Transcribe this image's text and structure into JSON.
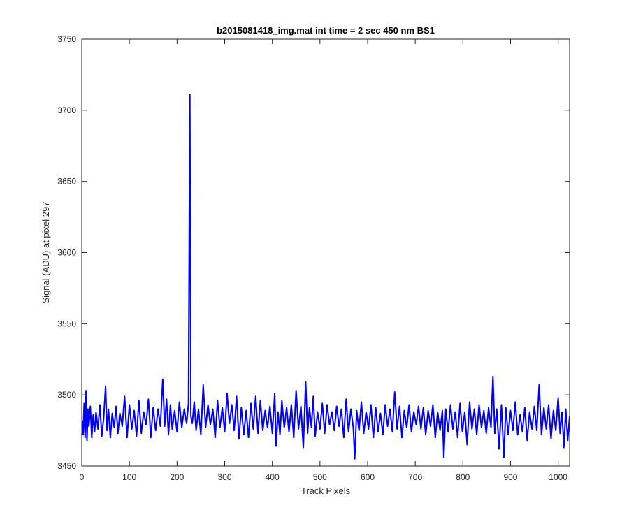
{
  "chart_data": {
    "type": "line",
    "title": "b2015081418_img.mat int time = 2 sec  450 nm BS1",
    "xlabel": "Track Pixels",
    "ylabel": "Signal (ADU) at pixel 297",
    "xlim": [
      0,
      1024
    ],
    "ylim": [
      3450,
      3750
    ],
    "xticks": [
      0,
      100,
      200,
      300,
      400,
      500,
      600,
      700,
      800,
      900,
      1000
    ],
    "yticks": [
      3450,
      3500,
      3550,
      3600,
      3650,
      3700,
      3750
    ],
    "grid": false,
    "line_color": "#0000ff",
    "series": [
      {
        "points": [
          [
            1,
            3482
          ],
          [
            3,
            3472
          ],
          [
            5,
            3494
          ],
          [
            7,
            3470
          ],
          [
            9,
            3503
          ],
          [
            11,
            3468
          ],
          [
            13,
            3490
          ],
          [
            15,
            3478
          ],
          [
            18,
            3492
          ],
          [
            21,
            3470
          ],
          [
            24,
            3486
          ],
          [
            27,
            3474
          ],
          [
            30,
            3488
          ],
          [
            34,
            3476
          ],
          [
            38,
            3493
          ],
          [
            42,
            3471
          ],
          [
            46,
            3484
          ],
          [
            50,
            3506
          ],
          [
            53,
            3475
          ],
          [
            56,
            3490
          ],
          [
            60,
            3470
          ],
          [
            64,
            3487
          ],
          [
            68,
            3477
          ],
          [
            72,
            3492
          ],
          [
            76,
            3473
          ],
          [
            80,
            3487
          ],
          [
            85,
            3478
          ],
          [
            90,
            3499
          ],
          [
            95,
            3470
          ],
          [
            100,
            3493
          ],
          [
            105,
            3476
          ],
          [
            110,
            3489
          ],
          [
            115,
            3471
          ],
          [
            120,
            3496
          ],
          [
            125,
            3473
          ],
          [
            130,
            3488
          ],
          [
            135,
            3479
          ],
          [
            140,
            3497
          ],
          [
            145,
            3470
          ],
          [
            150,
            3491
          ],
          [
            155,
            3475
          ],
          [
            160,
            3490
          ],
          [
            165,
            3478
          ],
          [
            170,
            3511
          ],
          [
            174,
            3478
          ],
          [
            178,
            3497
          ],
          [
            182,
            3472
          ],
          [
            186,
            3493
          ],
          [
            190,
            3476
          ],
          [
            195,
            3489
          ],
          [
            200,
            3474
          ],
          [
            205,
            3495
          ],
          [
            210,
            3477
          ],
          [
            215,
            3490
          ],
          [
            220,
            3480
          ],
          [
            224,
            3494
          ],
          [
            227,
            3711
          ],
          [
            229,
            3485
          ],
          [
            232,
            3480
          ],
          [
            236,
            3495
          ],
          [
            240,
            3475
          ],
          [
            245,
            3490
          ],
          [
            250,
            3472
          ],
          [
            255,
            3507
          ],
          [
            260,
            3477
          ],
          [
            265,
            3493
          ],
          [
            270,
            3479
          ],
          [
            275,
            3490
          ],
          [
            280,
            3470
          ],
          [
            285,
            3496
          ],
          [
            290,
            3477
          ],
          [
            295,
            3491
          ],
          [
            300,
            3474
          ],
          [
            305,
            3501
          ],
          [
            310,
            3480
          ],
          [
            315,
            3493
          ],
          [
            320,
            3475
          ],
          [
            325,
            3499
          ],
          [
            330,
            3469
          ],
          [
            335,
            3491
          ],
          [
            340,
            3472
          ],
          [
            345,
            3489
          ],
          [
            350,
            3470
          ],
          [
            355,
            3494
          ],
          [
            360,
            3476
          ],
          [
            365,
            3499
          ],
          [
            370,
            3473
          ],
          [
            375,
            3496
          ],
          [
            380,
            3475
          ],
          [
            385,
            3489
          ],
          [
            390,
            3477
          ],
          [
            395,
            3492
          ],
          [
            400,
            3473
          ],
          [
            405,
            3501
          ],
          [
            408,
            3464
          ],
          [
            412,
            3488
          ],
          [
            416,
            3472
          ],
          [
            420,
            3496
          ],
          [
            425,
            3477
          ],
          [
            430,
            3491
          ],
          [
            435,
            3474
          ],
          [
            440,
            3493
          ],
          [
            445,
            3470
          ],
          [
            450,
            3503
          ],
          [
            455,
            3476
          ],
          [
            460,
            3492
          ],
          [
            465,
            3463
          ],
          [
            470,
            3509
          ],
          [
            474,
            3473
          ],
          [
            478,
            3491
          ],
          [
            482,
            3477
          ],
          [
            486,
            3499
          ],
          [
            490,
            3471
          ],
          [
            495,
            3488
          ],
          [
            500,
            3476
          ],
          [
            505,
            3494
          ],
          [
            510,
            3473
          ],
          [
            515,
            3493
          ],
          [
            520,
            3479
          ],
          [
            525,
            3488
          ],
          [
            530,
            3475
          ],
          [
            535,
            3492
          ],
          [
            540,
            3478
          ],
          [
            545,
            3490
          ],
          [
            550,
            3470
          ],
          [
            555,
            3497
          ],
          [
            560,
            3474
          ],
          [
            565,
            3490
          ],
          [
            570,
            3477
          ],
          [
            573,
            3455
          ],
          [
            577,
            3489
          ],
          [
            582,
            3475
          ],
          [
            587,
            3495
          ],
          [
            592,
            3473
          ],
          [
            597,
            3488
          ],
          [
            602,
            3476
          ],
          [
            607,
            3493
          ],
          [
            612,
            3470
          ],
          [
            617,
            3491
          ],
          [
            622,
            3474
          ],
          [
            627,
            3487
          ],
          [
            632,
            3472
          ],
          [
            637,
            3493
          ],
          [
            642,
            3478
          ],
          [
            647,
            3490
          ],
          [
            652,
            3474
          ],
          [
            657,
            3502
          ],
          [
            662,
            3476
          ],
          [
            667,
            3492
          ],
          [
            672,
            3470
          ],
          [
            677,
            3489
          ],
          [
            682,
            3477
          ],
          [
            687,
            3493
          ],
          [
            692,
            3474
          ],
          [
            697,
            3488
          ],
          [
            702,
            3479
          ],
          [
            707,
            3492
          ],
          [
            712,
            3476
          ],
          [
            717,
            3491
          ],
          [
            722,
            3472
          ],
          [
            727,
            3489
          ],
          [
            732,
            3478
          ],
          [
            737,
            3493
          ],
          [
            742,
            3470
          ],
          [
            747,
            3488
          ],
          [
            752,
            3475
          ],
          [
            757,
            3489
          ],
          [
            760,
            3456
          ],
          [
            764,
            3490
          ],
          [
            769,
            3474
          ],
          [
            774,
            3493
          ],
          [
            779,
            3476
          ],
          [
            784,
            3488
          ],
          [
            789,
            3470
          ],
          [
            794,
            3494
          ],
          [
            799,
            3474
          ],
          [
            804,
            3488
          ],
          [
            809,
            3465
          ],
          [
            814,
            3495
          ],
          [
            819,
            3476
          ],
          [
            824,
            3490
          ],
          [
            829,
            3472
          ],
          [
            834,
            3493
          ],
          [
            839,
            3477
          ],
          [
            844,
            3489
          ],
          [
            849,
            3473
          ],
          [
            854,
            3491
          ],
          [
            859,
            3477
          ],
          [
            863,
            3513
          ],
          [
            867,
            3473
          ],
          [
            871,
            3490
          ],
          [
            876,
            3462
          ],
          [
            881,
            3493
          ],
          [
            886,
            3456
          ],
          [
            890,
            3491
          ],
          [
            895,
            3472
          ],
          [
            900,
            3489
          ],
          [
            905,
            3475
          ],
          [
            910,
            3495
          ],
          [
            915,
            3472
          ],
          [
            920,
            3486
          ],
          [
            925,
            3474
          ],
          [
            930,
            3491
          ],
          [
            935,
            3468
          ],
          [
            940,
            3488
          ],
          [
            945,
            3476
          ],
          [
            950,
            3492
          ],
          [
            955,
            3475
          ],
          [
            960,
            3507
          ],
          [
            965,
            3472
          ],
          [
            970,
            3491
          ],
          [
            975,
            3476
          ],
          [
            980,
            3493
          ],
          [
            985,
            3469
          ],
          [
            990,
            3489
          ],
          [
            995,
            3475
          ],
          [
            1000,
            3498
          ],
          [
            1004,
            3473
          ],
          [
            1008,
            3488
          ],
          [
            1012,
            3463
          ],
          [
            1016,
            3490
          ],
          [
            1020,
            3468
          ],
          [
            1024,
            3485
          ]
        ]
      }
    ]
  }
}
